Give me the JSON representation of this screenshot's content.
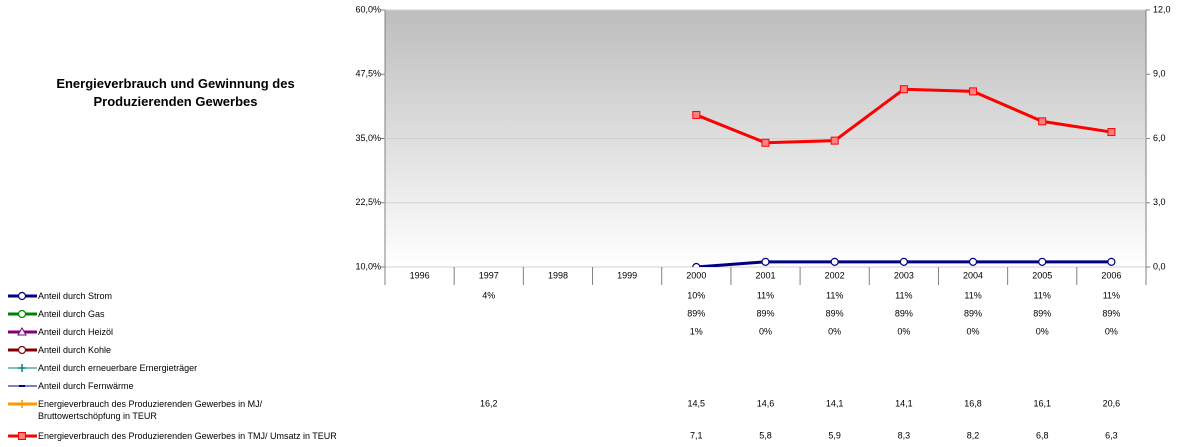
{
  "chart_data": {
    "type": "line",
    "title": "Energieverbrauch und Gewinnung des Produzierenden Gewerbes",
    "categories": [
      "1996",
      "1997",
      "1998",
      "1999",
      "2000",
      "2001",
      "2002",
      "2003",
      "2004",
      "2005",
      "2006"
    ],
    "ylim": [
      10,
      60
    ],
    "yticks": [
      {
        "value": 10,
        "label": "10,0%"
      },
      {
        "value": 22.5,
        "label": "22,5%"
      },
      {
        "value": 35,
        "label": "35,0%"
      },
      {
        "value": 47.5,
        "label": "47,5%"
      },
      {
        "value": 60,
        "label": "60,0%"
      }
    ],
    "y2lim": [
      0,
      12
    ],
    "y2ticks": [
      {
        "value": 0,
        "label": "0,0"
      },
      {
        "value": 3,
        "label": "3,0"
      },
      {
        "value": 6,
        "label": "6,0"
      },
      {
        "value": 9,
        "label": "9,0"
      },
      {
        "value": 12,
        "label": "12,0"
      }
    ],
    "grid": true,
    "series": [
      {
        "name": "Anteil durch Strom",
        "color": "#000080",
        "marker": "circle",
        "line_width": 3,
        "values": [
          null,
          4,
          null,
          null,
          10,
          11,
          11,
          11,
          11,
          11,
          11
        ],
        "value_labels": [
          null,
          "4%",
          null,
          null,
          "10%",
          "11%",
          "11%",
          "11%",
          "11%",
          "11%",
          "11%"
        ]
      },
      {
        "name": "Anteil durch Gas",
        "color": "#008000",
        "marker": "circle",
        "line_width": 3,
        "values": [
          null,
          null,
          null,
          null,
          89,
          89,
          89,
          89,
          89,
          89,
          89
        ],
        "value_labels": [
          null,
          null,
          null,
          null,
          "89%",
          "89%",
          "89%",
          "89%",
          "89%",
          "89%",
          "89%"
        ]
      },
      {
        "name": "Anteil durch Heizöl",
        "color": "#800080",
        "marker": "triangle",
        "line_width": 3,
        "values": [
          null,
          null,
          null,
          null,
          1,
          0,
          0,
          0,
          0,
          0,
          0
        ],
        "value_labels": [
          null,
          null,
          null,
          null,
          "1%",
          "0%",
          "0%",
          "0%",
          "0%",
          "0%",
          "0%"
        ]
      },
      {
        "name": "Anteil durch Kohle",
        "color": "#800000",
        "marker": "circle",
        "line_width": 3,
        "values": [
          null,
          null,
          null,
          null,
          null,
          null,
          null,
          null,
          null,
          null,
          null
        ]
      },
      {
        "name": "Anteil durch erneuerbare Ernergieträger",
        "color": "#008080",
        "marker": "plus",
        "line_width": 1,
        "values": [
          null,
          null,
          null,
          null,
          null,
          null,
          null,
          null,
          null,
          null,
          null
        ]
      },
      {
        "name": "Anteil durch Fernwärme",
        "color": "#000080",
        "marker": "dash",
        "line_width": 1,
        "values": [
          null,
          null,
          null,
          null,
          null,
          null,
          null,
          null,
          null,
          null,
          null
        ]
      },
      {
        "name": "Energieverbrauch des Produzierenden Gewerbes in MJ/ Bruttowertschöpfung in TEUR",
        "color": "#ff9900",
        "marker": "plus",
        "line_width": 3,
        "axis": "y2",
        "values": [
          null,
          16.2,
          null,
          null,
          14.5,
          14.6,
          14.1,
          14.1,
          16.8,
          16.1,
          20.6
        ],
        "value_labels": [
          null,
          "16,2",
          null,
          null,
          "14,5",
          "14,6",
          "14,1",
          "14,1",
          "16,8",
          "16,1",
          "20,6"
        ]
      },
      {
        "name": "Energieverbrauch des Produzierenden Gewerbes in TMJ/ Umsatz in TEUR",
        "color": "#ff0000",
        "marker": "square",
        "line_width": 3,
        "axis": "y2",
        "values": [
          null,
          null,
          null,
          null,
          7.1,
          5.8,
          5.9,
          8.3,
          8.2,
          6.8,
          6.3
        ],
        "value_labels": [
          null,
          null,
          null,
          null,
          "7,1",
          "5,8",
          "5,9",
          "8,3",
          "8,2",
          "6,8",
          "6,3"
        ]
      }
    ]
  }
}
